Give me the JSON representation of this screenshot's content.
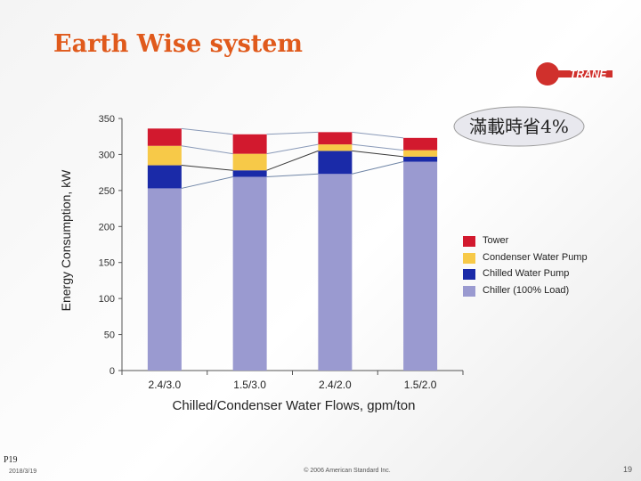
{
  "slide": {
    "title": "Earth Wise system",
    "logo_text": "TRANE",
    "callout": "滿載時省4%",
    "footer_page_label": "P19",
    "footer_date": "2018/3/19",
    "footer_copyright": "© 2006 American Standard Inc.",
    "footer_page_number": "19"
  },
  "colors": {
    "title": "#e05a1c",
    "brand_red": "#d0302c",
    "chiller": "#9a9ad0",
    "chilled_water_pump": "#1a2aa8",
    "condenser_water_pump": "#f7c948",
    "tower": "#d2192e",
    "connector_line": "#7a8aa5"
  },
  "chart_data": {
    "type": "bar",
    "stacked": true,
    "categories": [
      "2.4/3.0",
      "1.5/3.0",
      "2.4/2.0",
      "1.5/2.0"
    ],
    "xlabel": "Chilled/Condenser Water Flows, gpm/ton",
    "ylabel": "Energy Consumption, kW",
    "ylim": [
      0,
      350
    ],
    "yticks": [
      0,
      50,
      100,
      150,
      200,
      250,
      300,
      350
    ],
    "legend_position": "right",
    "series": [
      {
        "name": "Chiller (100% Load)",
        "values": [
          253,
          269,
          273,
          290
        ],
        "color": "#9a9ad0"
      },
      {
        "name": "Chilled Water Pump",
        "values": [
          32,
          9,
          32,
          7
        ],
        "color": "#1a2aa8"
      },
      {
        "name": "Condenser Water Pump",
        "values": [
          27,
          23,
          9,
          9
        ],
        "color": "#f7c948"
      },
      {
        "name": "Tower",
        "values": [
          24,
          27,
          17,
          17
        ],
        "color": "#d2192e"
      }
    ],
    "legend_order": [
      "Tower",
      "Condenser Water Pump",
      "Chilled Water Pump",
      "Chiller (100% Load)"
    ]
  }
}
